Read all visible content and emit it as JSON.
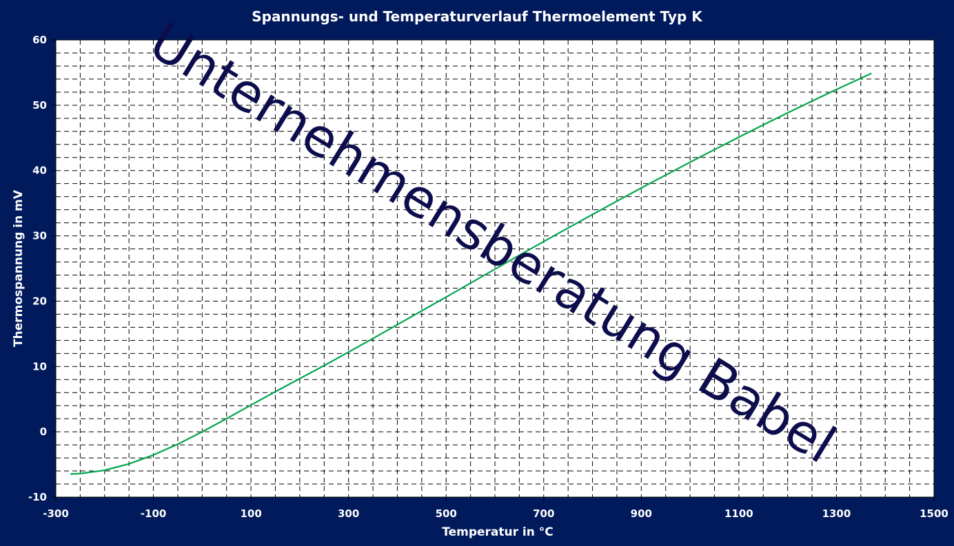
{
  "chart_data": {
    "type": "line",
    "title": "Spannungs- und Temperaturverlauf Thermoelement Typ K",
    "xlabel": "Temperatur in °C",
    "ylabel": "Thermospannung in mV",
    "xlim": [
      -300,
      1500
    ],
    "ylim": [
      -10,
      60
    ],
    "x_ticks": [
      -300,
      -100,
      100,
      300,
      500,
      700,
      900,
      1100,
      1300,
      1500
    ],
    "y_ticks": [
      -10,
      0,
      10,
      20,
      30,
      40,
      50,
      60
    ],
    "x_minor_step": 50,
    "y_minor_step": 2,
    "grid": true,
    "legend": "none",
    "watermark": "Unternehmensberatung Babel",
    "series": [
      {
        "color": "#00a550",
        "x": [
          -270,
          -250,
          -200,
          -150,
          -100,
          -50,
          0,
          50,
          100,
          150,
          200,
          250,
          300,
          350,
          400,
          450,
          500,
          550,
          600,
          650,
          700,
          750,
          800,
          850,
          900,
          950,
          1000,
          1050,
          1100,
          1150,
          1200,
          1250,
          1300,
          1350,
          1372
        ],
        "y": [
          -6.46,
          -6.4,
          -5.89,
          -4.91,
          -3.55,
          -1.89,
          0.0,
          2.02,
          4.1,
          6.14,
          8.14,
          10.15,
          12.21,
          14.29,
          16.4,
          18.52,
          20.64,
          22.77,
          24.9,
          27.03,
          29.13,
          31.21,
          33.28,
          35.31,
          37.33,
          39.31,
          41.28,
          43.21,
          45.12,
          46.99,
          48.84,
          50.64,
          52.41,
          54.14,
          54.89
        ]
      }
    ]
  },
  "colors": {
    "background": "#001a5c",
    "plot_area": "#ffffff",
    "grid": "#000000",
    "text": "#ffffff",
    "watermark": "#0d0d4d"
  }
}
